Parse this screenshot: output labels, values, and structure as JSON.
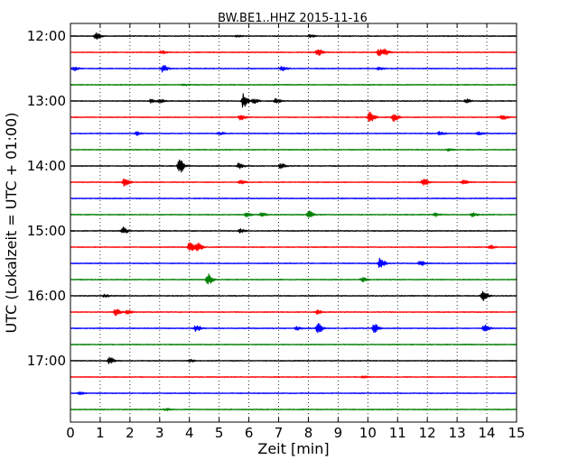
{
  "chart_data": {
    "type": "line",
    "title": "BW.BE1..HHZ 2015-11-16",
    "xlabel": "Zeit  [min]",
    "ylabel": "UTC (Lokalzeit = UTC + 01:00)",
    "xlim": [
      0,
      15
    ],
    "x_ticks": [
      "0",
      "1",
      "2",
      "3",
      "4",
      "5",
      "6",
      "7",
      "8",
      "9",
      "10",
      "11",
      "12",
      "13",
      "14",
      "15"
    ],
    "y_tick_labels": [
      "12:00",
      "13:00",
      "14:00",
      "15:00",
      "16:00",
      "17:00"
    ],
    "grid": "vertical dotted lines at each minute",
    "row_interval_min": 15,
    "color_cycle": [
      "#000000",
      "#ff0000",
      "#0000ff",
      "#008000"
    ],
    "traces": [
      {
        "start": "12:00",
        "events": [
          {
            "t": 0.85,
            "amp": 0.9
          },
          {
            "t": 5.6,
            "amp": 0.3
          },
          {
            "t": 8.05,
            "amp": 0.4
          }
        ]
      },
      {
        "start": "12:15",
        "events": [
          {
            "t": 3.05,
            "amp": 0.4
          },
          {
            "t": 8.3,
            "amp": 1.0
          },
          {
            "t": 10.35,
            "amp": 1.0
          },
          {
            "t": 10.55,
            "amp": 0.7
          }
        ]
      },
      {
        "start": "12:30",
        "events": [
          {
            "t": 0.1,
            "amp": 0.5
          },
          {
            "t": 3.1,
            "amp": 1.0
          },
          {
            "t": 7.1,
            "amp": 0.6
          },
          {
            "t": 10.35,
            "amp": 0.4
          }
        ]
      },
      {
        "start": "12:45",
        "events": [
          {
            "t": 3.8,
            "amp": 0.2
          }
        ]
      },
      {
        "start": "13:00",
        "events": [
          {
            "t": 2.7,
            "amp": 0.5
          },
          {
            "t": 3.0,
            "amp": 0.5
          },
          {
            "t": 5.8,
            "amp": 1.9
          },
          {
            "t": 6.15,
            "amp": 0.6
          },
          {
            "t": 6.9,
            "amp": 0.6
          },
          {
            "t": 13.3,
            "amp": 0.5
          }
        ]
      },
      {
        "start": "13:15",
        "events": [
          {
            "t": 5.7,
            "amp": 0.8
          },
          {
            "t": 10.05,
            "amp": 1.6
          },
          {
            "t": 10.85,
            "amp": 1.3
          },
          {
            "t": 14.5,
            "amp": 0.7
          }
        ]
      },
      {
        "start": "13:30",
        "events": [
          {
            "t": 2.2,
            "amp": 0.5
          },
          {
            "t": 5.0,
            "amp": 0.4
          },
          {
            "t": 12.4,
            "amp": 0.5
          },
          {
            "t": 13.7,
            "amp": 0.4
          }
        ]
      },
      {
        "start": "13:45",
        "events": [
          {
            "t": 12.7,
            "amp": 0.3
          }
        ]
      },
      {
        "start": "14:00",
        "events": [
          {
            "t": 3.65,
            "amp": 2.0
          },
          {
            "t": 5.65,
            "amp": 0.7
          },
          {
            "t": 7.05,
            "amp": 0.7
          }
        ]
      },
      {
        "start": "14:15",
        "events": [
          {
            "t": 1.8,
            "amp": 1.2
          },
          {
            "t": 5.7,
            "amp": 0.6
          },
          {
            "t": 11.85,
            "amp": 1.2
          },
          {
            "t": 13.2,
            "amp": 0.5
          }
        ]
      },
      {
        "start": "14:30",
        "events": []
      },
      {
        "start": "14:45",
        "events": [
          {
            "t": 5.9,
            "amp": 0.5
          },
          {
            "t": 6.4,
            "amp": 0.5
          },
          {
            "t": 8.0,
            "amp": 1.0
          },
          {
            "t": 12.25,
            "amp": 0.5
          },
          {
            "t": 13.5,
            "amp": 0.5
          }
        ]
      },
      {
        "start": "15:00",
        "events": [
          {
            "t": 1.75,
            "amp": 1.0
          },
          {
            "t": 5.7,
            "amp": 0.5
          }
        ]
      },
      {
        "start": "15:15",
        "events": [
          {
            "t": 4.0,
            "amp": 1.5
          },
          {
            "t": 4.25,
            "amp": 1.2
          },
          {
            "t": 14.1,
            "amp": 0.5
          }
        ]
      },
      {
        "start": "15:30",
        "events": [
          {
            "t": 10.4,
            "amp": 1.4
          },
          {
            "t": 11.75,
            "amp": 0.6
          }
        ]
      },
      {
        "start": "15:45",
        "events": [
          {
            "t": 4.6,
            "amp": 1.6
          },
          {
            "t": 9.8,
            "amp": 0.6
          }
        ]
      },
      {
        "start": "16:00",
        "events": [
          {
            "t": 1.15,
            "amp": 0.4
          },
          {
            "t": 13.85,
            "amp": 1.6
          }
        ]
      },
      {
        "start": "16:15",
        "events": [
          {
            "t": 1.5,
            "amp": 1.0
          },
          {
            "t": 1.9,
            "amp": 0.5
          },
          {
            "t": 8.3,
            "amp": 0.5
          }
        ]
      },
      {
        "start": "16:30",
        "events": [
          {
            "t": 4.2,
            "amp": 0.9
          },
          {
            "t": 7.6,
            "amp": 0.4
          },
          {
            "t": 8.3,
            "amp": 1.4
          },
          {
            "t": 10.2,
            "amp": 1.1
          },
          {
            "t": 13.9,
            "amp": 1.0
          }
        ]
      },
      {
        "start": "16:45",
        "events": []
      },
      {
        "start": "17:00",
        "events": [
          {
            "t": 1.3,
            "amp": 0.9
          },
          {
            "t": 4.0,
            "amp": 0.3
          }
        ]
      },
      {
        "start": "17:15",
        "events": [
          {
            "t": 9.85,
            "amp": 0.3
          }
        ]
      },
      {
        "start": "17:30",
        "events": [
          {
            "t": 0.3,
            "amp": 0.3
          }
        ]
      },
      {
        "start": "17:45",
        "events": [
          {
            "t": 3.2,
            "amp": 0.3
          }
        ]
      }
    ]
  }
}
